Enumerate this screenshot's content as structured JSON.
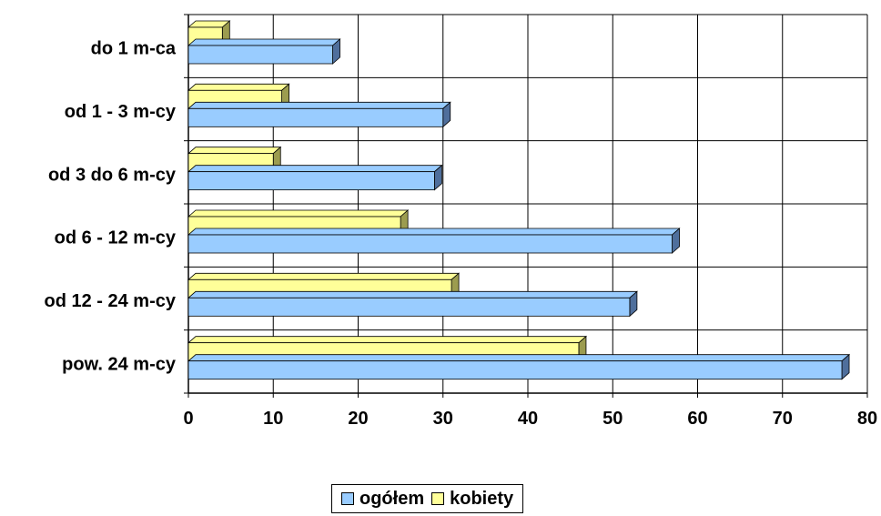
{
  "chart_data": {
    "type": "bar",
    "orientation": "horizontal",
    "categories": [
      "do 1 m-ca",
      "od 1 - 3 m-cy",
      "od 3 do 6 m-cy",
      "od 6 - 12 m-cy",
      "od 12 - 24 m-cy",
      "pow. 24 m-cy"
    ],
    "series": [
      {
        "name": "ogółem",
        "values": [
          17,
          30,
          29,
          57,
          52,
          77
        ],
        "color": "#99ccff",
        "side_color": "#4f6f9c"
      },
      {
        "name": "kobiety",
        "values": [
          4,
          11,
          10,
          25,
          31,
          46
        ],
        "color": "#ffff99",
        "side_color": "#9c9c4f"
      }
    ],
    "xticks": [
      "0",
      "10",
      "20",
      "30",
      "40",
      "50",
      "60",
      "70",
      "80"
    ],
    "xlim": [
      0,
      80
    ],
    "grid": true,
    "legend_position": "bottom"
  }
}
